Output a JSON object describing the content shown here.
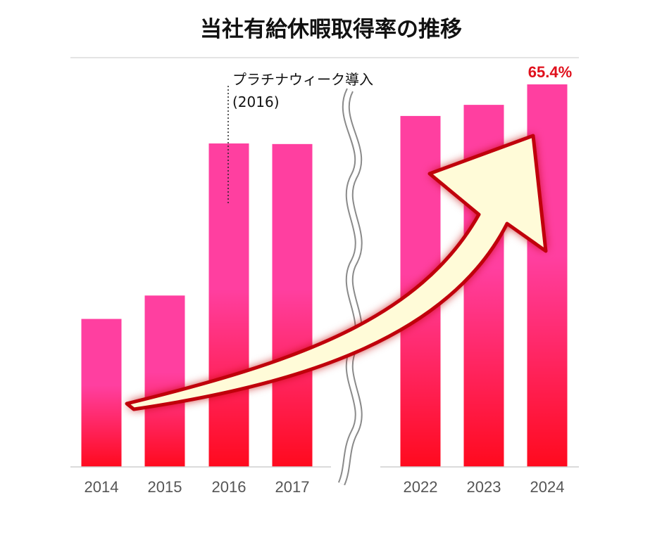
{
  "chart_data": {
    "type": "bar",
    "title": "当社有給休暇取得率の推移",
    "categories": [
      "2014",
      "2015",
      "2016",
      "2017",
      "2022",
      "2023",
      "2024"
    ],
    "values": [
      25.3,
      29.3,
      55.3,
      55.2,
      60.0,
      61.9,
      65.4
    ],
    "data_labels": [
      {
        "category": "2024",
        "text": "65.4%"
      }
    ],
    "axis_break": {
      "after": "2017",
      "before": "2022"
    },
    "annotation": {
      "category": "2016",
      "line1": "プラチナウィーク導入",
      "line2": "(2016)"
    },
    "grid": false,
    "legend": "none"
  },
  "colors": {
    "bar_top": "#ff3fa0",
    "bar_bottom": "#ff0a1e",
    "arrow_fill": "#fffbd8",
    "arrow_glow": "#c0000b",
    "highlight_label": "#e0101c"
  }
}
